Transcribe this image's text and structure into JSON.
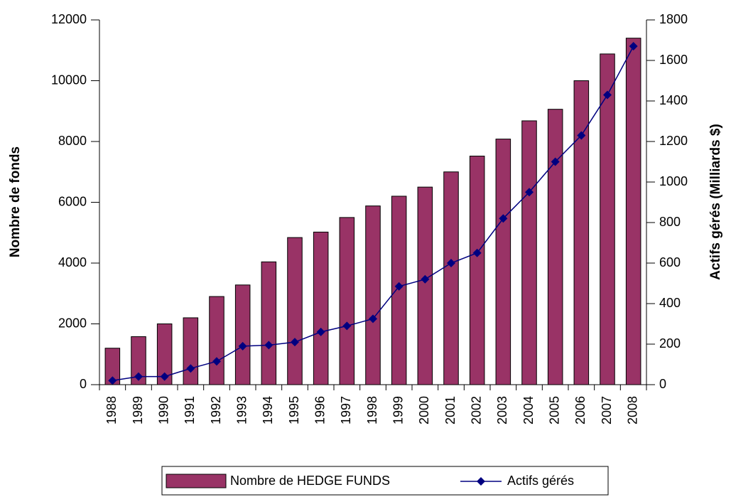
{
  "chart_data": {
    "type": "bar",
    "categories": [
      "1988",
      "1989",
      "1990",
      "1991",
      "1992",
      "1993",
      "1994",
      "1995",
      "1996",
      "1997",
      "1998",
      "1999",
      "2000",
      "2001",
      "2002",
      "2003",
      "2004",
      "2005",
      "2006",
      "2007",
      "2008"
    ],
    "series": [
      {
        "name": "Nombre de HEDGE FUNDS",
        "type": "bar",
        "color": "#993366",
        "values": [
          1200,
          1580,
          2000,
          2200,
          2900,
          3280,
          4040,
          4840,
          5020,
          5500,
          5880,
          6200,
          6500,
          7000,
          7520,
          8080,
          8680,
          9060,
          10000,
          10880,
          11400
        ]
      },
      {
        "name": "Actifs gérés",
        "type": "line",
        "axis": "y2",
        "color": "#000080",
        "values": [
          20,
          40,
          40,
          80,
          115,
          190,
          195,
          210,
          260,
          290,
          325,
          485,
          520,
          600,
          650,
          820,
          950,
          1100,
          1230,
          1430,
          1670
        ]
      }
    ],
    "ylabel": "Nombre de fonds",
    "y2label": "Actifs gérés (Milliards $)",
    "ylim": [
      0,
      12000
    ],
    "yticks": [
      0,
      2000,
      4000,
      6000,
      8000,
      10000,
      12000
    ],
    "y2lim": [
      0,
      1800
    ],
    "y2ticks": [
      0,
      200,
      400,
      600,
      800,
      1000,
      1200,
      1400,
      1600,
      1800
    ],
    "grid": false,
    "legend": "bottom"
  }
}
